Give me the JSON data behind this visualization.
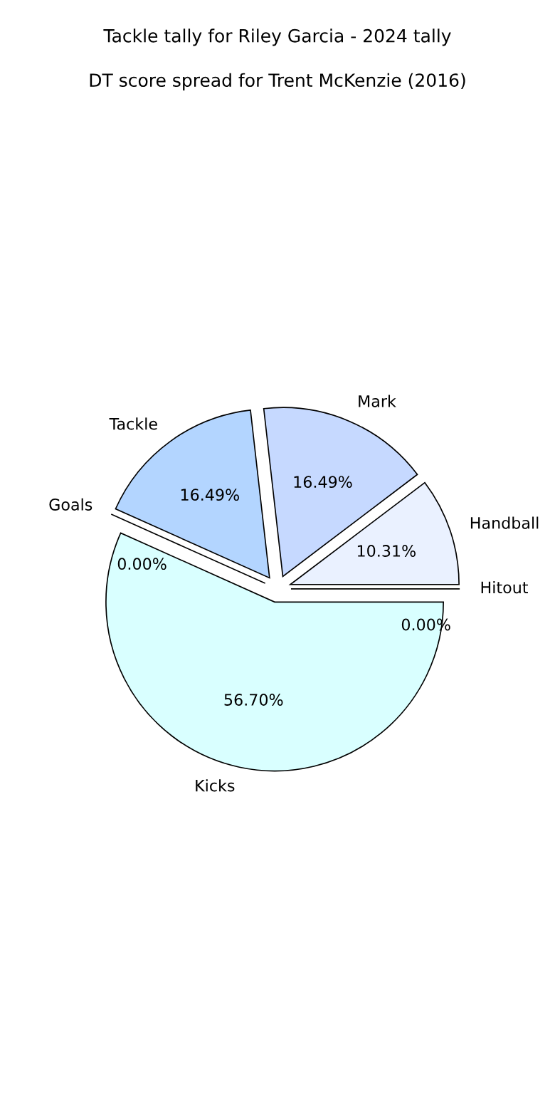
{
  "chart_data": {
    "type": "pie",
    "title": "Tackle tally for Riley Garcia - 2024 tally",
    "subtitle": "DT score spread for Trent McKenzie (2016)",
    "categories": [
      "Handball",
      "Mark",
      "Tackle",
      "Goals",
      "Kicks",
      "Hitout"
    ],
    "values": [
      10.31,
      16.49,
      16.49,
      0.0,
      56.7,
      0.0
    ],
    "value_labels": [
      "10.31%",
      "16.49%",
      "16.49%",
      "0.00%",
      "56.70%",
      "0.00%"
    ],
    "colors": [
      "#eaf1ff",
      "#c6d9ff",
      "#b3d5ff",
      "#a8e0ff",
      "#d9ffff",
      "#e0e0ff"
    ]
  }
}
